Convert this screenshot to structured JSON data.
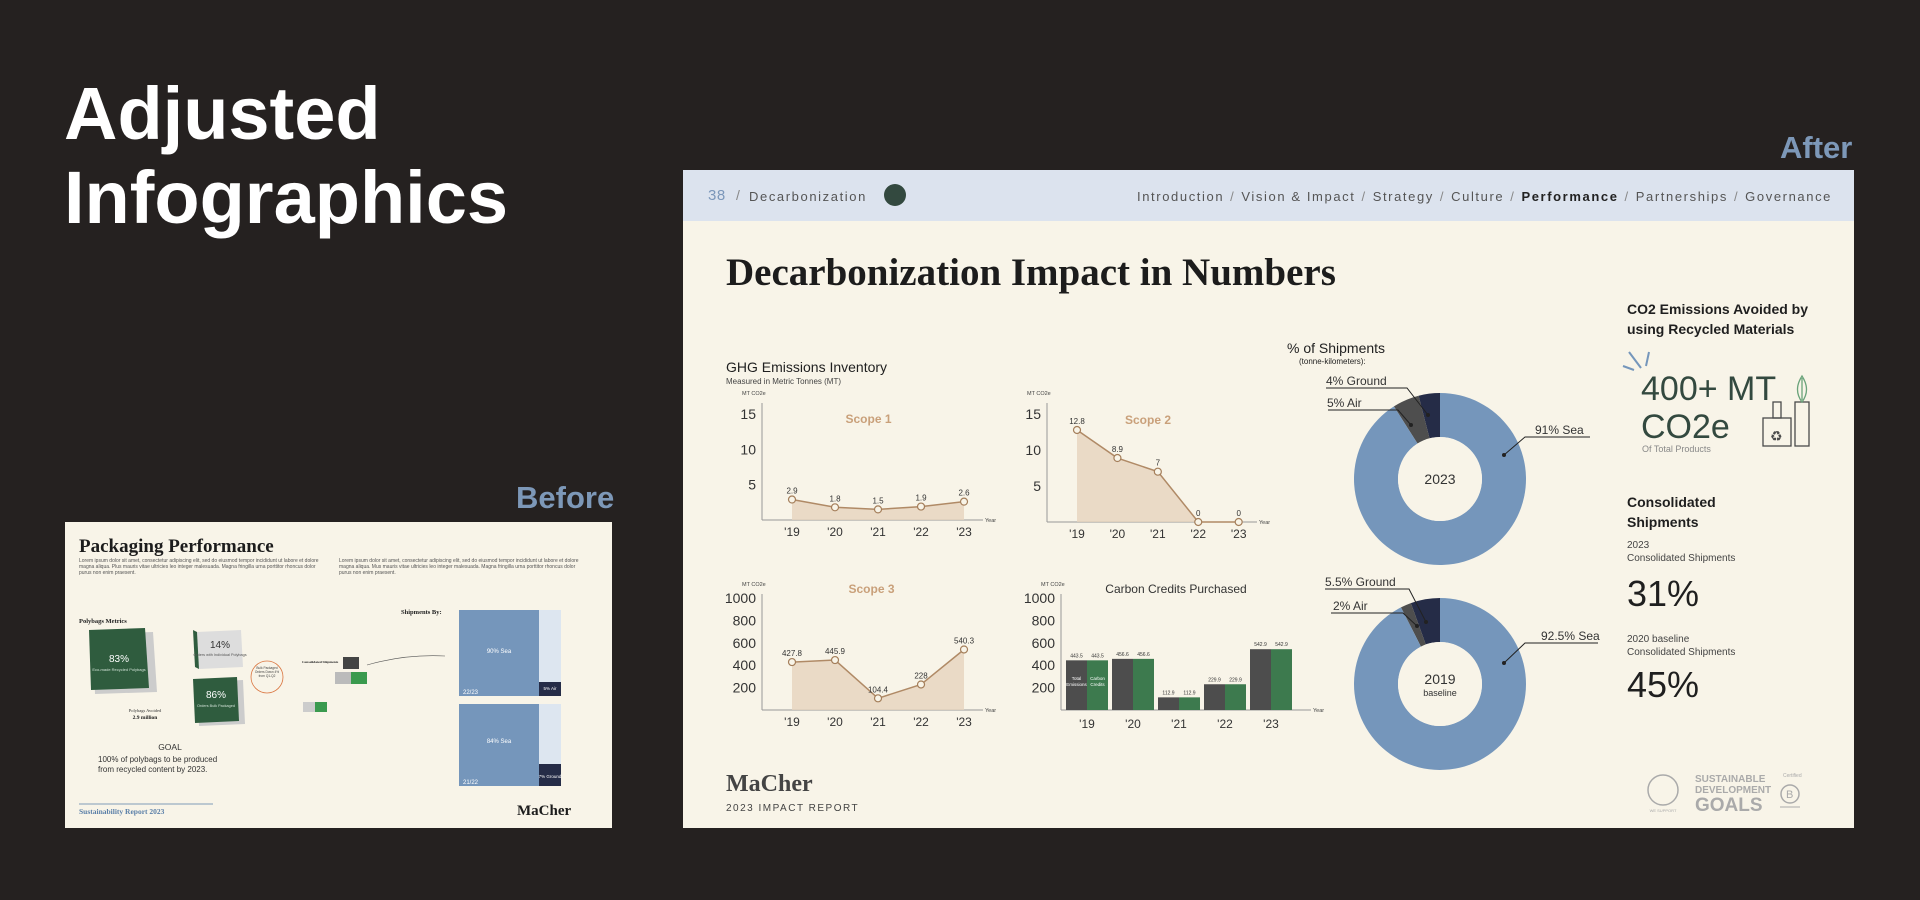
{
  "heading": {
    "line1": "Adjusted",
    "line2": "Infographics"
  },
  "labels": {
    "before": "Before",
    "after": "After"
  },
  "before": {
    "title": "Packaging Performance",
    "lorem1": "Lorem ipsum dolor sit amet, consectetur adipiscing elit, sed do eiusmod tempor incididunt ut labore et dolore magna aliqua. Plus mauris vitae ultricies leo integer malesuada. Magna fringilla urna porttitor rhoncus dolor purus non enim praesent.",
    "lorem2": "Lorem ipsum dolor sit amet, consectetur adipiscing elit, sed do eiusmod tempor incididunt ut labore et dolore magna aliqua. Mus mauris vitae ultricies leo integer malesuada. Magna fringilla urna porttitor rhoncus dolor purus non enim praesent.",
    "polybags_title": "Polybags Metrics",
    "pct_83": "83%",
    "pct_83_sub": "Eco-made Recycled Polybags",
    "pct_14": "14%",
    "pct_14_sub": "Orders with Individual Polybags",
    "pct_86": "86%",
    "pct_86_sub": "Orders Bulk Packaged",
    "bulk_note": "Bulk Packaged Orders Down 4% from Q1-Q2",
    "polybags_avoided": "Polybags Avoided",
    "polybags_avoided_val": "2.9 million",
    "shipments_by": "Shipments By:",
    "consolidated": "Consolidated Shipments",
    "v_2223": "22/23",
    "v_2122": "21/22",
    "sea_1": "90% Sea",
    "sea_2": "84% Sea",
    "small_1": "5% Air",
    "small_2": "7% Ground",
    "goal_title": "GOAL",
    "goal_text1": "100% of polybags to be produced",
    "goal_text2": "from recycled content by 2023.",
    "footer": "Sustainability Report 2023",
    "brand": "MaCher"
  },
  "after": {
    "nav": {
      "page_num": "38",
      "section": "Decarbonization",
      "items": [
        "Introduction",
        "Vision & Impact",
        "Strategy",
        "Culture",
        "Performance",
        "Partnerships",
        "Governance"
      ],
      "active": "Performance"
    },
    "title": "Decarbonization Impact in Numbers",
    "ghg_title": "GHG Emissions Inventory",
    "ghg_sub": "Measured in Metric Tonnes (MT)",
    "unit": "MT CO2e",
    "year_label": "Year",
    "shipments_title": "% of Shipments",
    "shipments_sub": "(tonne-kilometers):",
    "co2_title1": "CO2 Emissions Avoided by",
    "co2_title2": "using Recycled Materials",
    "co2_big1": "400+ MT",
    "co2_big2": "CO2e",
    "co2_small": "Of Total Products",
    "cons_title1": "Consolidated",
    "cons_title2": "Shipments",
    "cons_2023a": "2023",
    "cons_2023b": "Consolidated Shipments",
    "cons_2023_val": "31%",
    "cons_2020a": "2020 baseline",
    "cons_2020b": "Consolidated Shipments",
    "cons_2020_val": "45%",
    "brand": "MaCher",
    "report": "2023 IMPACT REPORT",
    "sdg1": "SUSTAINABLE",
    "sdg2": "DEVELOPMENT",
    "sdg3": "GOALS",
    "bcorp": "Certified",
    "un_text": "WE SUPPORT"
  },
  "colors": {
    "bg": "#252120",
    "card": "#f8f4e8",
    "nav": "#dce3ee",
    "blue": "#7596bb",
    "navy": "#252c47",
    "green": "#3d7a4e",
    "tan": "#c9a07a",
    "gray": "#4d4d4d"
  },
  "chart_data": [
    {
      "type": "area",
      "title": "Scope 1",
      "ylabel": "MT CO2e",
      "xlabel": "Year",
      "x": [
        "'19",
        "'20",
        "'21",
        "'22",
        "'23"
      ],
      "values": [
        2.9,
        1.8,
        1.5,
        1.9,
        2.6
      ],
      "yticks": [
        5,
        10,
        15
      ],
      "ylim": [
        0,
        16
      ]
    },
    {
      "type": "area",
      "title": "Scope 2",
      "ylabel": "MT CO2e",
      "xlabel": "Year",
      "x": [
        "'19",
        "'20",
        "'21",
        "'22",
        "'23"
      ],
      "values": [
        12.8,
        8.9,
        7,
        0,
        0
      ],
      "yticks": [
        5,
        10,
        15
      ],
      "ylim": [
        0,
        16
      ]
    },
    {
      "type": "area",
      "title": "Scope 3",
      "ylabel": "MT CO2e",
      "xlabel": "Year",
      "x": [
        "'19",
        "'20",
        "'21",
        "'22",
        "'23"
      ],
      "values": [
        427.8,
        445.9,
        104.4,
        228,
        540.3
      ],
      "yticks": [
        200,
        400,
        600,
        800,
        1000
      ],
      "ylim": [
        0,
        1000
      ]
    },
    {
      "type": "bar",
      "title": "Carbon Credits Purchased",
      "ylabel": "MT CO2e",
      "xlabel": "Year",
      "categories": [
        "'19",
        "'20",
        "'21",
        "'22",
        "'23"
      ],
      "yticks": [
        200,
        400,
        600,
        800,
        1000
      ],
      "ylim": [
        0,
        1000
      ],
      "series": [
        {
          "name": "Total Emissions",
          "values": [
            443.5,
            456.6,
            112.9,
            229.9,
            542.9
          ]
        },
        {
          "name": "Carbon Credits",
          "values": [
            443.5,
            456.6,
            112.9,
            229.9,
            542.9
          ]
        }
      ]
    },
    {
      "type": "pie",
      "center": "2023",
      "slices": [
        {
          "label": "91% Sea",
          "value": 91
        },
        {
          "label": "5% Air",
          "value": 5
        },
        {
          "label": "4% Ground",
          "value": 4
        }
      ]
    },
    {
      "type": "pie",
      "center": "2019",
      "center_sub": "baseline",
      "slices": [
        {
          "label": "92.5% Sea",
          "value": 92.5
        },
        {
          "label": "2% Air",
          "value": 2
        },
        {
          "label": "5.5% Ground",
          "value": 5.5
        }
      ]
    }
  ]
}
